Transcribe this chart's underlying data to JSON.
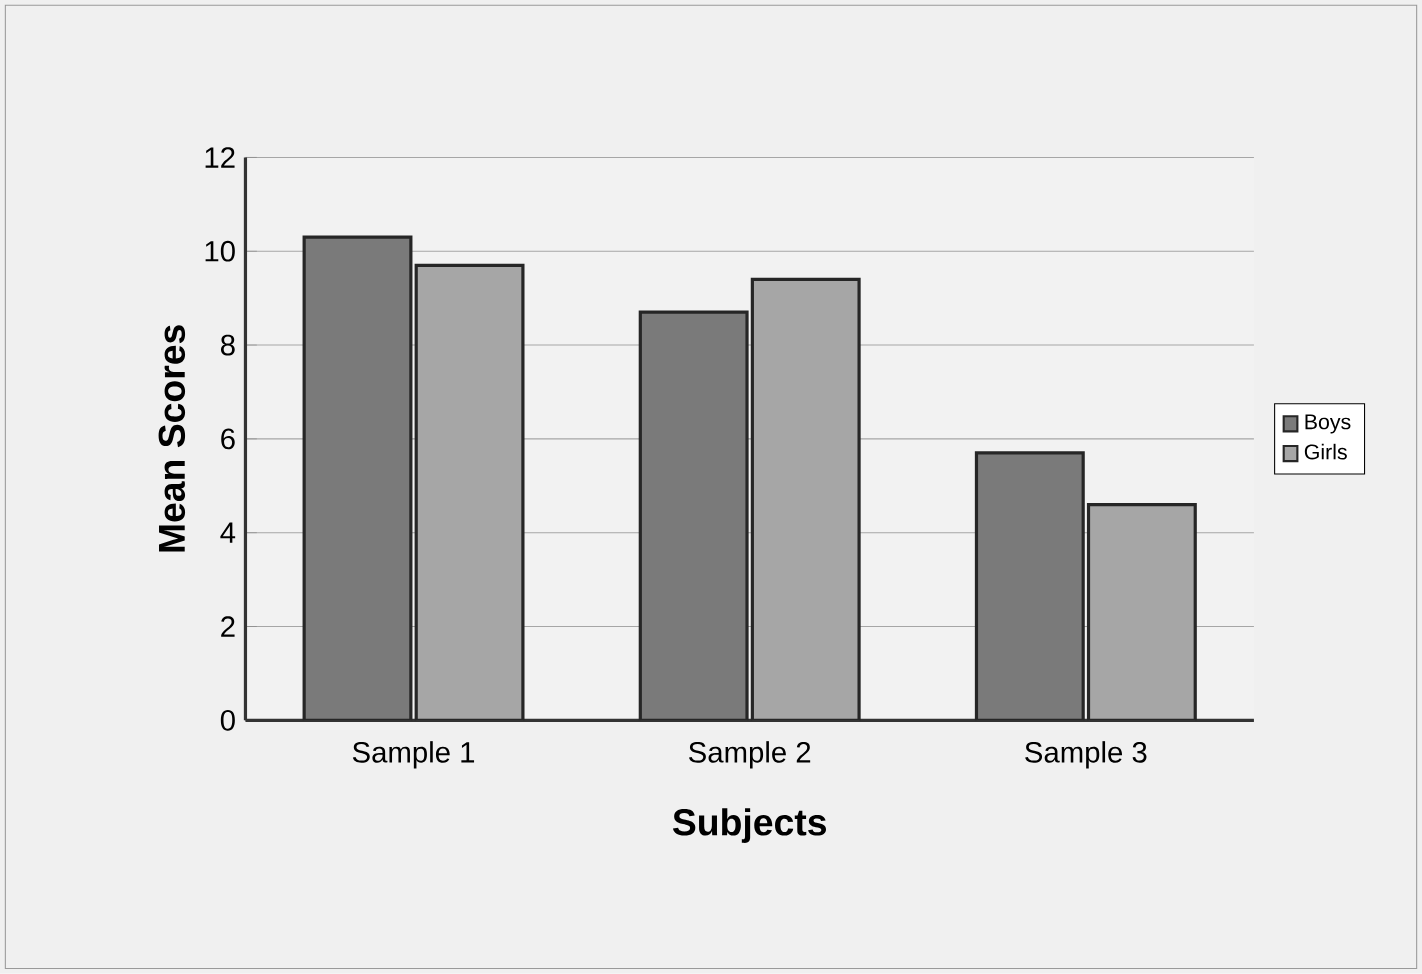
{
  "chart_data": {
    "type": "bar",
    "xlabel": "Subjects",
    "ylabel": "Mean Scores",
    "categories": [
      "Sample 1",
      "Sample 2",
      "Sample 3"
    ],
    "series": [
      {
        "name": "Boys",
        "color": "#7a7a7a",
        "values": [
          10.3,
          8.7,
          5.7
        ]
      },
      {
        "name": "Girls",
        "color": "#a6a6a6",
        "values": [
          9.7,
          9.4,
          4.6
        ]
      }
    ],
    "ylim": [
      0,
      12
    ],
    "yticks": [
      0,
      2,
      4,
      6,
      8,
      10,
      12
    ],
    "grid": "y",
    "legend": "right"
  }
}
